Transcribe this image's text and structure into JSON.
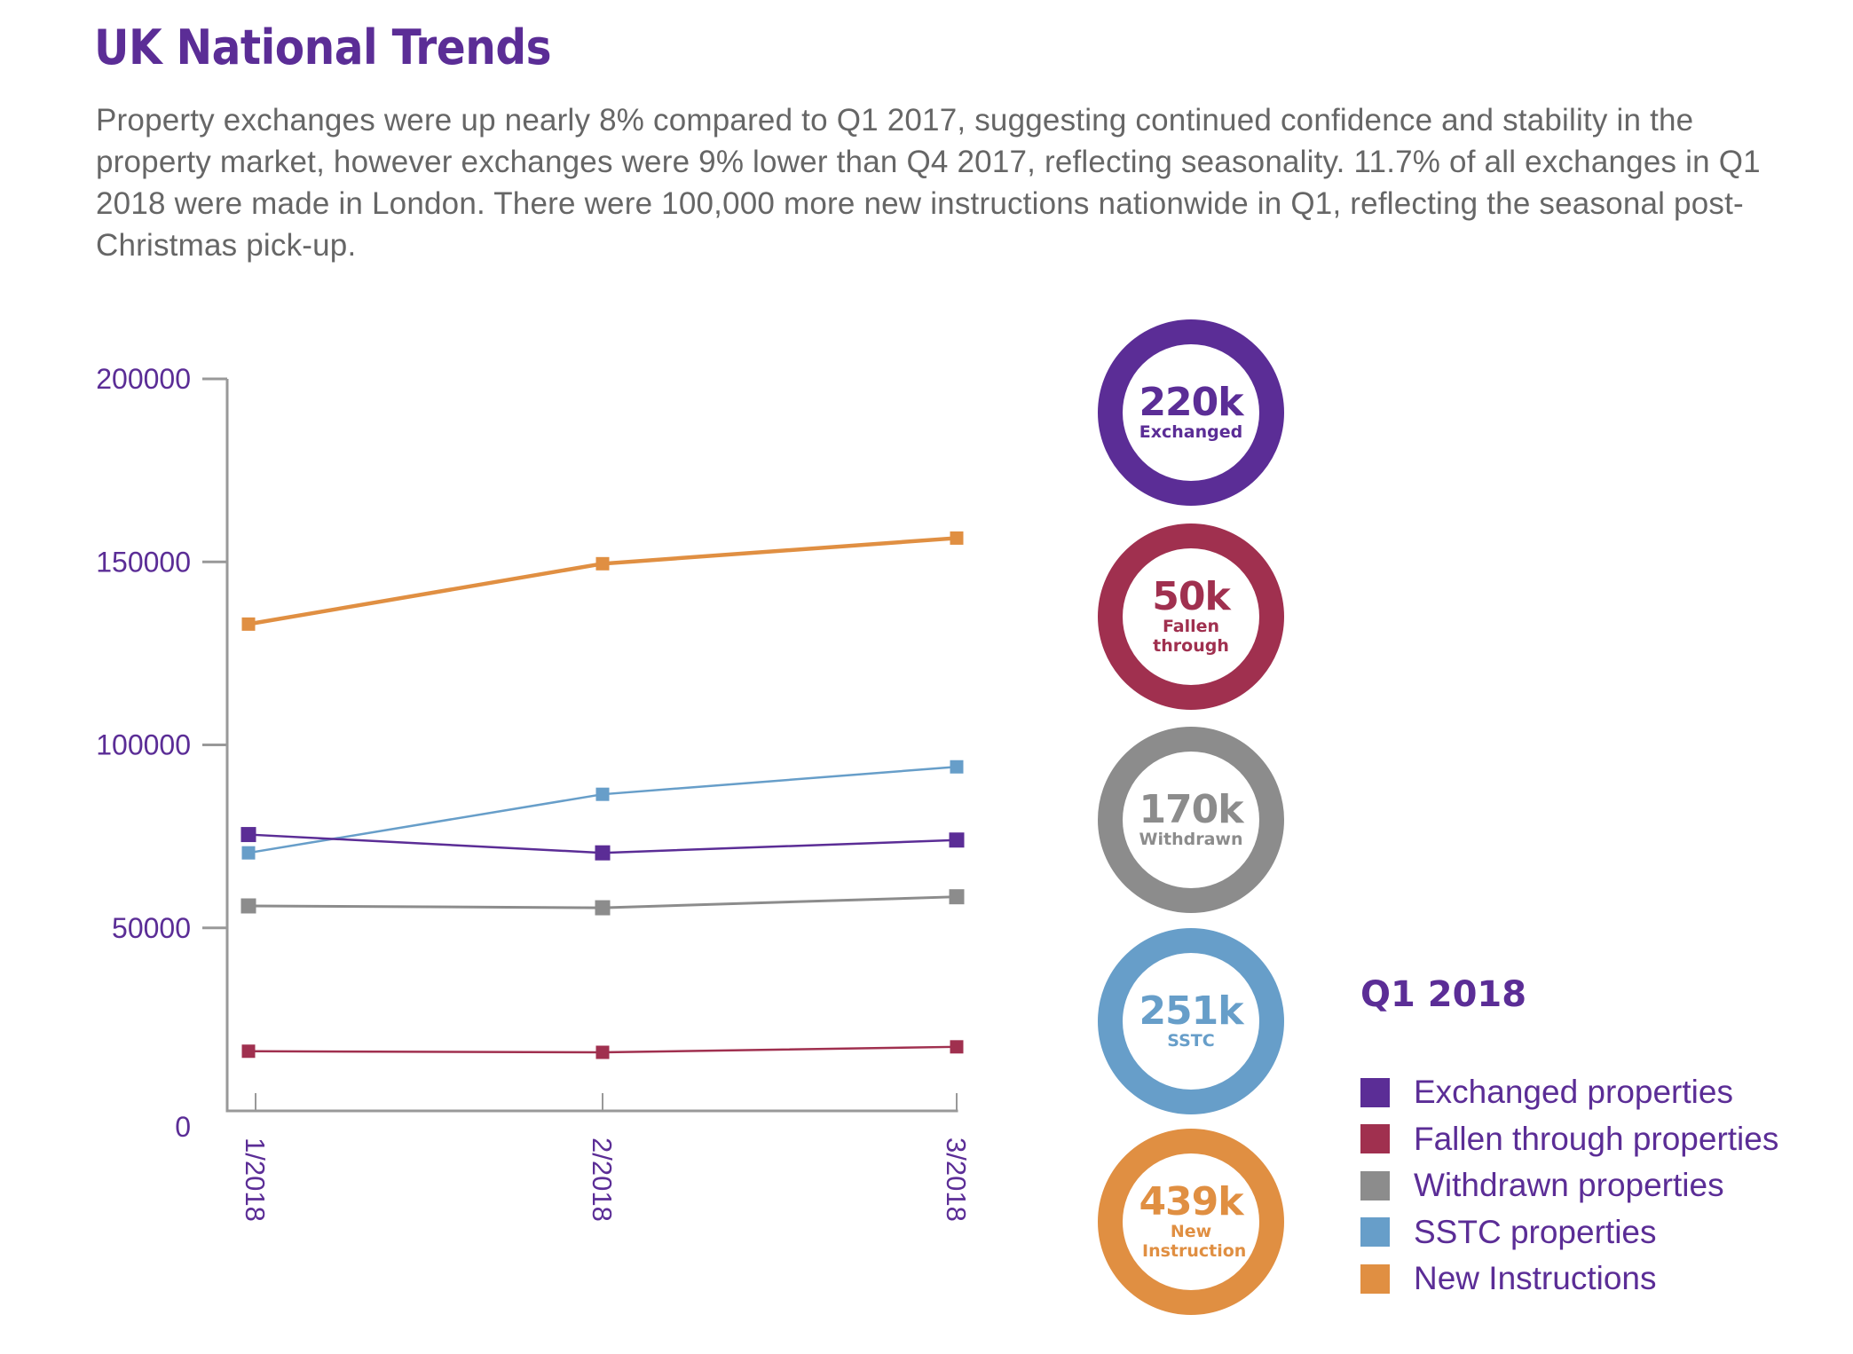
{
  "header": {
    "title": "UK National Trends",
    "intro": "Property exchanges were up nearly 8% compared to Q1 2017, suggesting continued confidence and stability in the property market, however exchanges were 9% lower than Q4 2017, reflecting seasonality. 11.7% of all exchanges in Q1 2018 were made in London. There were 100,000 more new instructions nationwide in Q1, reflecting the seasonal post-Christmas pick-up."
  },
  "colors": {
    "exchanged": "#5b2d96",
    "fallen": "#a0304f",
    "withdrawn": "#8c8c8c",
    "sstc": "#679ec9",
    "new_instructions": "#e08f42",
    "axis": "#999999",
    "text_purple": "#5b2d96"
  },
  "chart_data": {
    "type": "line",
    "title": "",
    "xlabel": "",
    "ylabel": "",
    "x": [
      "1/2018",
      "2/2018",
      "3/2018"
    ],
    "yticks": [
      "0",
      "50000",
      "100000",
      "150000",
      "200000"
    ],
    "ylim": [
      0,
      200000
    ],
    "grid": false,
    "legend_placement": "bottom-right",
    "series": [
      {
        "key": "new_instructions",
        "name": "New Instructions",
        "values": [
          133000,
          149500,
          156500
        ]
      },
      {
        "key": "sstc",
        "name": "SSTC properties",
        "values": [
          70500,
          86500,
          94000
        ]
      },
      {
        "key": "exchanged",
        "name": "Exchanged properties",
        "values": [
          75500,
          70500,
          74000
        ]
      },
      {
        "key": "withdrawn",
        "name": "Withdrawn properties",
        "values": [
          56000,
          55500,
          58500
        ]
      },
      {
        "key": "fallen",
        "name": "Fallen through properties",
        "values": [
          16300,
          16000,
          17500
        ]
      }
    ]
  },
  "summary": {
    "donuts": [
      {
        "key": "exchanged",
        "value": "220k",
        "label": "Exchanged"
      },
      {
        "key": "fallen",
        "value": "50k",
        "label": "Fallen through"
      },
      {
        "key": "withdrawn",
        "value": "170k",
        "label": "Withdrawn"
      },
      {
        "key": "sstc",
        "value": "251k",
        "label": "SSTC"
      },
      {
        "key": "new_instructions",
        "value": "439k",
        "label": "New Instruction"
      }
    ]
  },
  "legend": {
    "title": "Q1 2018",
    "items": [
      {
        "key": "exchanged",
        "label": "Exchanged properties"
      },
      {
        "key": "fallen",
        "label": "Fallen through properties"
      },
      {
        "key": "withdrawn",
        "label": "Withdrawn properties"
      },
      {
        "key": "sstc",
        "label": "SSTC properties"
      },
      {
        "key": "new_instructions",
        "label": "New Instructions"
      }
    ]
  }
}
